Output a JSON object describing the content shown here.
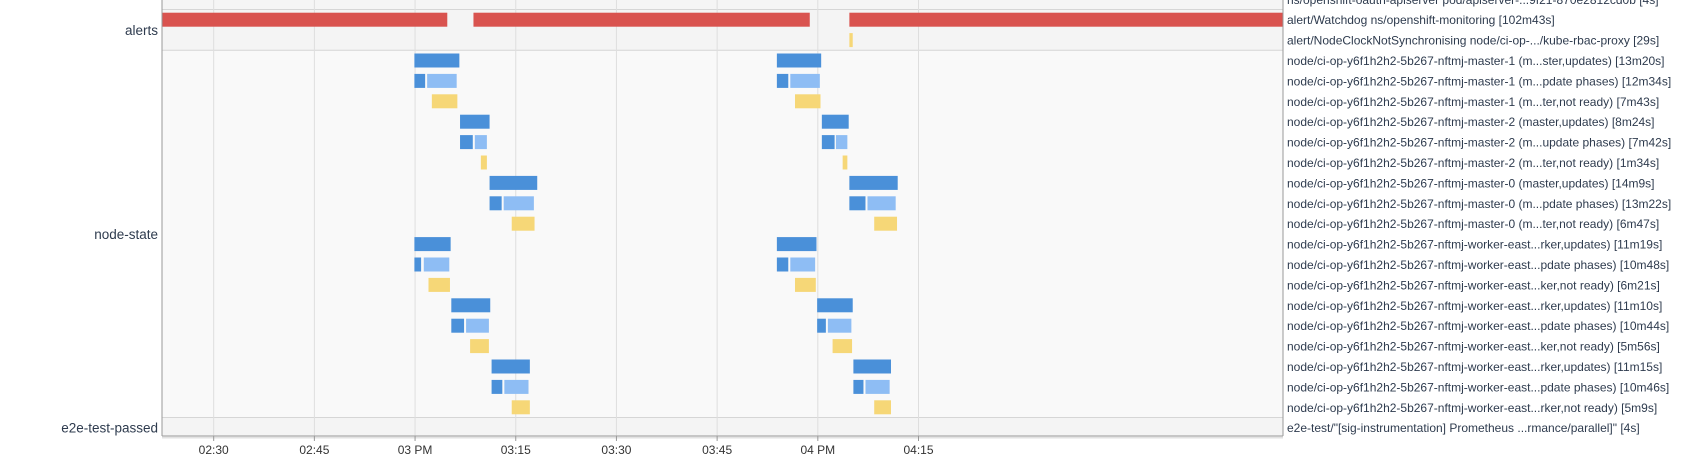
{
  "chart_data": {
    "type": "timeline",
    "x_axis": {
      "unit": "minutes since 02:00",
      "range": [
        22.3,
        189.3
      ],
      "ticks": [
        {
          "label": "02:30",
          "value": 30
        },
        {
          "label": "02:45",
          "value": 45
        },
        {
          "label": "03 PM",
          "value": 60
        },
        {
          "label": "03:15",
          "value": 75
        },
        {
          "label": "03:30",
          "value": 90
        },
        {
          "label": "03:45",
          "value": 105
        },
        {
          "label": "04 PM",
          "value": 120
        },
        {
          "label": "04:15",
          "value": 135
        }
      ]
    },
    "grid": true,
    "colors": {
      "alert": "#d9534f",
      "alert_info": "#f6d777",
      "update": "#4a90d9",
      "phase_dark": "#4a90d9",
      "phase_light": "#8ebdf4",
      "not_ready": "#f6d777"
    },
    "groups": [
      {
        "name": "alerts",
        "first_row": 0,
        "last_row": 1
      },
      {
        "name": "node-state",
        "first_row": 2,
        "last_row": 19
      },
      {
        "name": "e2e-test-passed",
        "first_row": 20,
        "last_row": 20
      }
    ],
    "top_partial_label": "ns/openshift-oauth-apiserver pod/apiserver-...9f21-870e2812cd0b [4s]",
    "rows": [
      {
        "label": "alert/Watchdog ns/openshift-monitoring [102m43s]",
        "segments": [
          {
            "start": 22.3,
            "end": 64.8,
            "kind": "alert"
          },
          {
            "start": 68.7,
            "end": 118.8,
            "kind": "alert"
          },
          {
            "start": 124.7,
            "end": 189.3,
            "kind": "alert"
          }
        ]
      },
      {
        "label": "alert/NodeClockNotSynchronising node/ci-op-.../kube-rbac-proxy [29s]",
        "segments": [
          {
            "start": 124.7,
            "end": 125.2,
            "kind": "alert_info"
          }
        ]
      },
      {
        "label": "node/ci-op-y6f1h2h2-5b267-nftmj-master-1 (m...ster,updates) [13m20s]",
        "segments": [
          {
            "start": 59.9,
            "end": 66.6,
            "kind": "update"
          },
          {
            "start": 113.9,
            "end": 120.5,
            "kind": "update"
          }
        ]
      },
      {
        "label": "node/ci-op-y6f1h2h2-5b267-nftmj-master-1 (m...pdate phases) [12m34s]",
        "segments": [
          {
            "start": 59.9,
            "end": 61.5,
            "kind": "phase_dark"
          },
          {
            "start": 61.8,
            "end": 66.2,
            "kind": "phase_light"
          },
          {
            "start": 113.9,
            "end": 115.6,
            "kind": "phase_dark"
          },
          {
            "start": 115.9,
            "end": 120.3,
            "kind": "phase_light"
          }
        ]
      },
      {
        "label": "node/ci-op-y6f1h2h2-5b267-nftmj-master-1 (m...ter,not ready) [7m43s]",
        "segments": [
          {
            "start": 62.5,
            "end": 66.3,
            "kind": "not_ready"
          },
          {
            "start": 116.6,
            "end": 120.4,
            "kind": "not_ready"
          }
        ]
      },
      {
        "label": "node/ci-op-y6f1h2h2-5b267-nftmj-master-2 (master,updates) [8m24s]",
        "segments": [
          {
            "start": 66.7,
            "end": 71.1,
            "kind": "update"
          },
          {
            "start": 120.6,
            "end": 124.6,
            "kind": "update"
          }
        ]
      },
      {
        "label": "node/ci-op-y6f1h2h2-5b267-nftmj-master-2 (m...update phases) [7m42s]",
        "segments": [
          {
            "start": 66.7,
            "end": 68.6,
            "kind": "phase_dark"
          },
          {
            "start": 68.9,
            "end": 70.7,
            "kind": "phase_light"
          },
          {
            "start": 120.6,
            "end": 122.5,
            "kind": "phase_dark"
          },
          {
            "start": 122.7,
            "end": 124.4,
            "kind": "phase_light"
          }
        ]
      },
      {
        "label": "node/ci-op-y6f1h2h2-5b267-nftmj-master-2 (m...ter,not ready) [1m34s]",
        "segments": [
          {
            "start": 69.8,
            "end": 70.7,
            "kind": "not_ready"
          },
          {
            "start": 123.7,
            "end": 124.4,
            "kind": "not_ready"
          }
        ]
      },
      {
        "label": "node/ci-op-y6f1h2h2-5b267-nftmj-master-0 (master,updates) [14m9s]",
        "segments": [
          {
            "start": 71.1,
            "end": 78.2,
            "kind": "update"
          },
          {
            "start": 124.7,
            "end": 131.9,
            "kind": "update"
          }
        ]
      },
      {
        "label": "node/ci-op-y6f1h2h2-5b267-nftmj-master-0 (m...pdate phases) [13m22s]",
        "segments": [
          {
            "start": 71.1,
            "end": 72.9,
            "kind": "phase_dark"
          },
          {
            "start": 73.2,
            "end": 77.7,
            "kind": "phase_light"
          },
          {
            "start": 124.7,
            "end": 127.1,
            "kind": "phase_dark"
          },
          {
            "start": 127.4,
            "end": 131.6,
            "kind": "phase_light"
          }
        ]
      },
      {
        "label": "node/ci-op-y6f1h2h2-5b267-nftmj-master-0 (m...ter,not ready) [6m47s]",
        "segments": [
          {
            "start": 74.4,
            "end": 77.8,
            "kind": "not_ready"
          },
          {
            "start": 128.4,
            "end": 131.8,
            "kind": "not_ready"
          }
        ]
      },
      {
        "label": "node/ci-op-y6f1h2h2-5b267-nftmj-worker-east...rker,updates) [11m19s]",
        "segments": [
          {
            "start": 59.9,
            "end": 65.3,
            "kind": "update"
          },
          {
            "start": 113.9,
            "end": 119.8,
            "kind": "update"
          }
        ]
      },
      {
        "label": "node/ci-op-y6f1h2h2-5b267-nftmj-worker-east...pdate phases) [10m48s]",
        "segments": [
          {
            "start": 59.9,
            "end": 60.9,
            "kind": "phase_dark"
          },
          {
            "start": 61.3,
            "end": 65.1,
            "kind": "phase_light"
          },
          {
            "start": 113.9,
            "end": 115.6,
            "kind": "phase_dark"
          },
          {
            "start": 115.9,
            "end": 119.6,
            "kind": "phase_light"
          }
        ]
      },
      {
        "label": "node/ci-op-y6f1h2h2-5b267-nftmj-worker-east...ker,not ready) [6m21s]",
        "segments": [
          {
            "start": 62.0,
            "end": 65.2,
            "kind": "not_ready"
          },
          {
            "start": 116.6,
            "end": 119.7,
            "kind": "not_ready"
          }
        ]
      },
      {
        "label": "node/ci-op-y6f1h2h2-5b267-nftmj-worker-east...rker,updates) [11m10s]",
        "segments": [
          {
            "start": 65.4,
            "end": 71.2,
            "kind": "update"
          },
          {
            "start": 119.9,
            "end": 125.2,
            "kind": "update"
          }
        ]
      },
      {
        "label": "node/ci-op-y6f1h2h2-5b267-nftmj-worker-east...pdate phases) [10m44s]",
        "segments": [
          {
            "start": 65.4,
            "end": 67.3,
            "kind": "phase_dark"
          },
          {
            "start": 67.6,
            "end": 71.0,
            "kind": "phase_light"
          },
          {
            "start": 119.9,
            "end": 121.2,
            "kind": "phase_dark"
          },
          {
            "start": 121.5,
            "end": 125.0,
            "kind": "phase_light"
          }
        ]
      },
      {
        "label": "node/ci-op-y6f1h2h2-5b267-nftmj-worker-east...ker,not ready) [5m56s]",
        "segments": [
          {
            "start": 68.2,
            "end": 71.0,
            "kind": "not_ready"
          },
          {
            "start": 122.2,
            "end": 125.1,
            "kind": "not_ready"
          }
        ]
      },
      {
        "label": "node/ci-op-y6f1h2h2-5b267-nftmj-worker-east...rker,updates) [11m15s]",
        "segments": [
          {
            "start": 71.4,
            "end": 77.1,
            "kind": "update"
          },
          {
            "start": 125.3,
            "end": 130.9,
            "kind": "update"
          }
        ]
      },
      {
        "label": "node/ci-op-y6f1h2h2-5b267-nftmj-worker-east...pdate phases) [10m46s]",
        "segments": [
          {
            "start": 71.4,
            "end": 73.0,
            "kind": "phase_dark"
          },
          {
            "start": 73.3,
            "end": 76.9,
            "kind": "phase_light"
          },
          {
            "start": 125.3,
            "end": 126.8,
            "kind": "phase_dark"
          },
          {
            "start": 127.1,
            "end": 130.7,
            "kind": "phase_light"
          }
        ]
      },
      {
        "label": "node/ci-op-y6f1h2h2-5b267-nftmj-worker-east...rker,not ready) [5m9s]",
        "segments": [
          {
            "start": 74.4,
            "end": 77.1,
            "kind": "not_ready"
          },
          {
            "start": 128.4,
            "end": 130.9,
            "kind": "not_ready"
          }
        ]
      },
      {
        "label": "e2e-test/\"[sig-instrumentation] Prometheus ...rmance/parallel]\" [4s]",
        "segments": []
      }
    ]
  }
}
